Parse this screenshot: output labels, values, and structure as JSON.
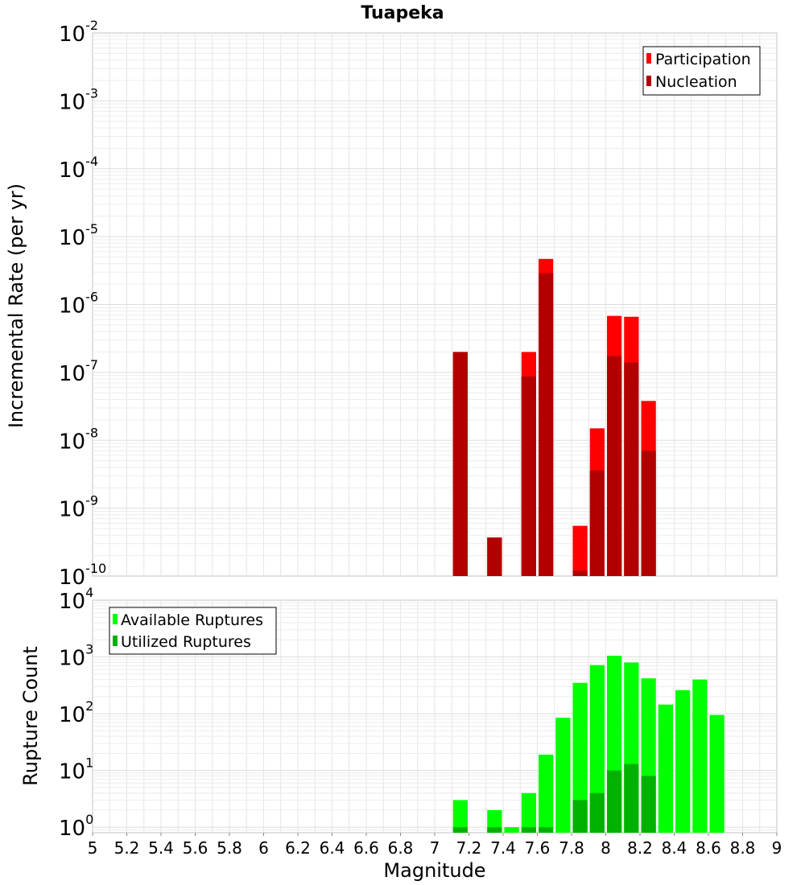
{
  "chart_data": [
    {
      "type": "bar",
      "title": "Tuapeka",
      "xlabel": "",
      "ylabel": "Incremental Rate (per yr)",
      "yscale": "log",
      "ylim": [
        1e-10,
        0.01
      ],
      "xlim": [
        5,
        9
      ],
      "grid": true,
      "legend_position": "top-right",
      "bar_width": 0.1,
      "yticks": [
        {
          "base": "10",
          "exp": "-10",
          "value": 1e-10
        },
        {
          "base": "10",
          "exp": "-9",
          "value": 1e-09
        },
        {
          "base": "10",
          "exp": "-8",
          "value": 1e-08
        },
        {
          "base": "10",
          "exp": "-7",
          "value": 1e-07
        },
        {
          "base": "10",
          "exp": "-6",
          "value": 1e-06
        },
        {
          "base": "10",
          "exp": "-5",
          "value": 1e-05
        },
        {
          "base": "10",
          "exp": "-4",
          "value": 0.0001
        },
        {
          "base": "10",
          "exp": "-3",
          "value": 0.001
        },
        {
          "base": "10",
          "exp": "-2",
          "value": 0.01
        }
      ],
      "series": [
        {
          "name": "Participation",
          "color": "#ff0000",
          "x": [
            7.15,
            7.35,
            7.55,
            7.65,
            7.85,
            7.95,
            8.05,
            8.15,
            8.25
          ],
          "values": [
            2e-07,
            3.7e-10,
            2e-07,
            4.7e-06,
            5.5e-10,
            1.5e-08,
            6.8e-07,
            6.6e-07,
            3.8e-08
          ]
        },
        {
          "name": "Nucleation",
          "color": "#b20000",
          "x": [
            7.15,
            7.35,
            7.55,
            7.65,
            7.85,
            7.95,
            8.05,
            8.15,
            8.25
          ],
          "values": [
            2e-07,
            3.7e-10,
            8.7e-08,
            2.9e-06,
            1.2e-10,
            3.6e-09,
            1.75e-07,
            1.4e-07,
            7e-09
          ]
        }
      ]
    },
    {
      "type": "bar",
      "title": "",
      "xlabel": "Magnitude",
      "ylabel": "Rupture Count",
      "yscale": "log",
      "ylim": [
        0.8,
        10000
      ],
      "xlim": [
        5,
        9
      ],
      "grid": true,
      "legend_position": "top-left",
      "bar_width": 0.1,
      "xticks": [
        "5",
        "5.2",
        "5.4",
        "5.6",
        "5.8",
        "6",
        "6.2",
        "6.4",
        "6.6",
        "6.8",
        "7",
        "7.2",
        "7.4",
        "7.6",
        "7.8",
        "8",
        "8.2",
        "8.4",
        "8.6",
        "8.8",
        "9"
      ],
      "yticks": [
        {
          "base": "10",
          "exp": "0",
          "value": 1
        },
        {
          "base": "10",
          "exp": "1",
          "value": 10
        },
        {
          "base": "10",
          "exp": "2",
          "value": 100
        },
        {
          "base": "10",
          "exp": "3",
          "value": 1000
        },
        {
          "base": "10",
          "exp": "4",
          "value": 10000
        }
      ],
      "series": [
        {
          "name": "Available Ruptures",
          "color": "#00ff00",
          "x": [
            7.15,
            7.35,
            7.45,
            7.55,
            7.65,
            7.75,
            7.85,
            7.95,
            8.05,
            8.15,
            8.25,
            8.35,
            8.45,
            8.55,
            8.65
          ],
          "values": [
            3,
            2,
            1,
            4,
            19,
            85,
            350,
            720,
            1050,
            800,
            420,
            145,
            260,
            400,
            95
          ]
        },
        {
          "name": "Utilized Ruptures",
          "color": "#00b200",
          "x": [
            7.15,
            7.35,
            7.55,
            7.65,
            7.85,
            7.95,
            8.05,
            8.15,
            8.25
          ],
          "values": [
            1,
            1,
            1,
            1,
            3,
            4,
            10,
            13,
            8
          ]
        }
      ]
    }
  ]
}
